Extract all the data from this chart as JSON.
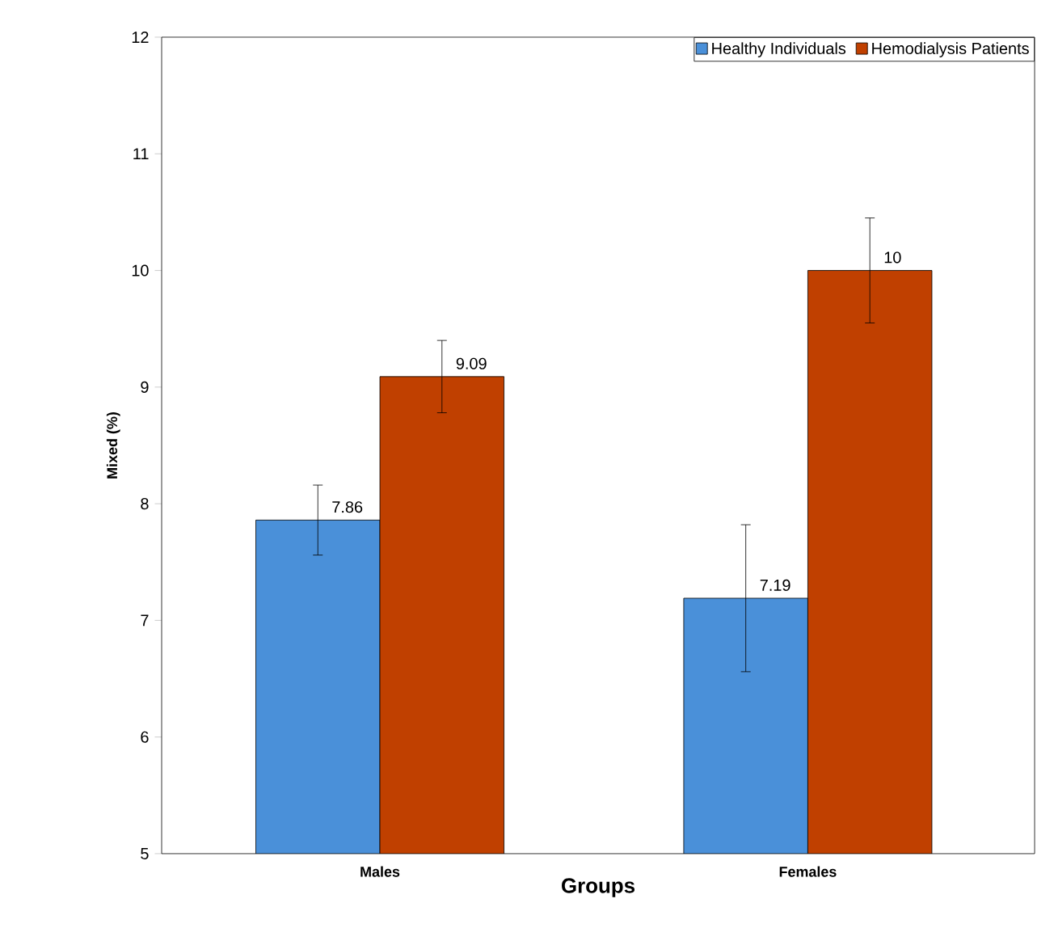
{
  "chart_data": {
    "type": "bar",
    "xlabel": "Groups",
    "ylabel": "Mixed  (%)",
    "categories": [
      "Males",
      "Females"
    ],
    "series": [
      {
        "name": "Healthy Individuals",
        "color": "#4a90d9",
        "values": [
          7.86,
          7.19
        ],
        "errors": [
          0.3,
          0.63
        ],
        "value_labels": [
          "7.86",
          "7.19"
        ]
      },
      {
        "name": "Hemodialysis Patients",
        "color": "#c04000",
        "values": [
          9.09,
          10
        ],
        "errors": [
          0.31,
          0.45
        ],
        "value_labels": [
          "9.09",
          "10"
        ]
      }
    ],
    "ylim": [
      5,
      12
    ],
    "yticks": [
      5,
      6,
      7,
      8,
      9,
      10,
      11,
      12
    ],
    "legend": "top right",
    "grid": false
  }
}
